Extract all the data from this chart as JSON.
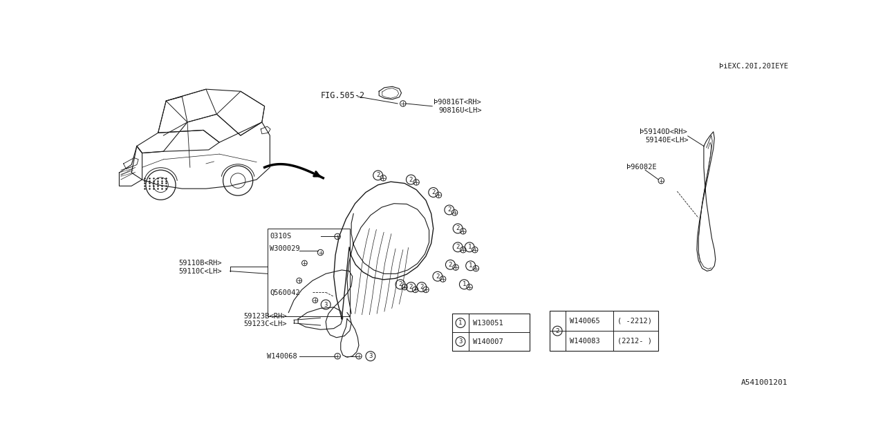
{
  "bg_color": "#ffffff",
  "line_color": "#1a1a1a",
  "text_color": "#1a1a1a",
  "fig_ref": "FIG.505-2",
  "top_right_note": "ÞiEXC.20I,20IEYE",
  "diagram_id": "A541001201",
  "font_size": 7.5,
  "note_sym": "Þ"
}
